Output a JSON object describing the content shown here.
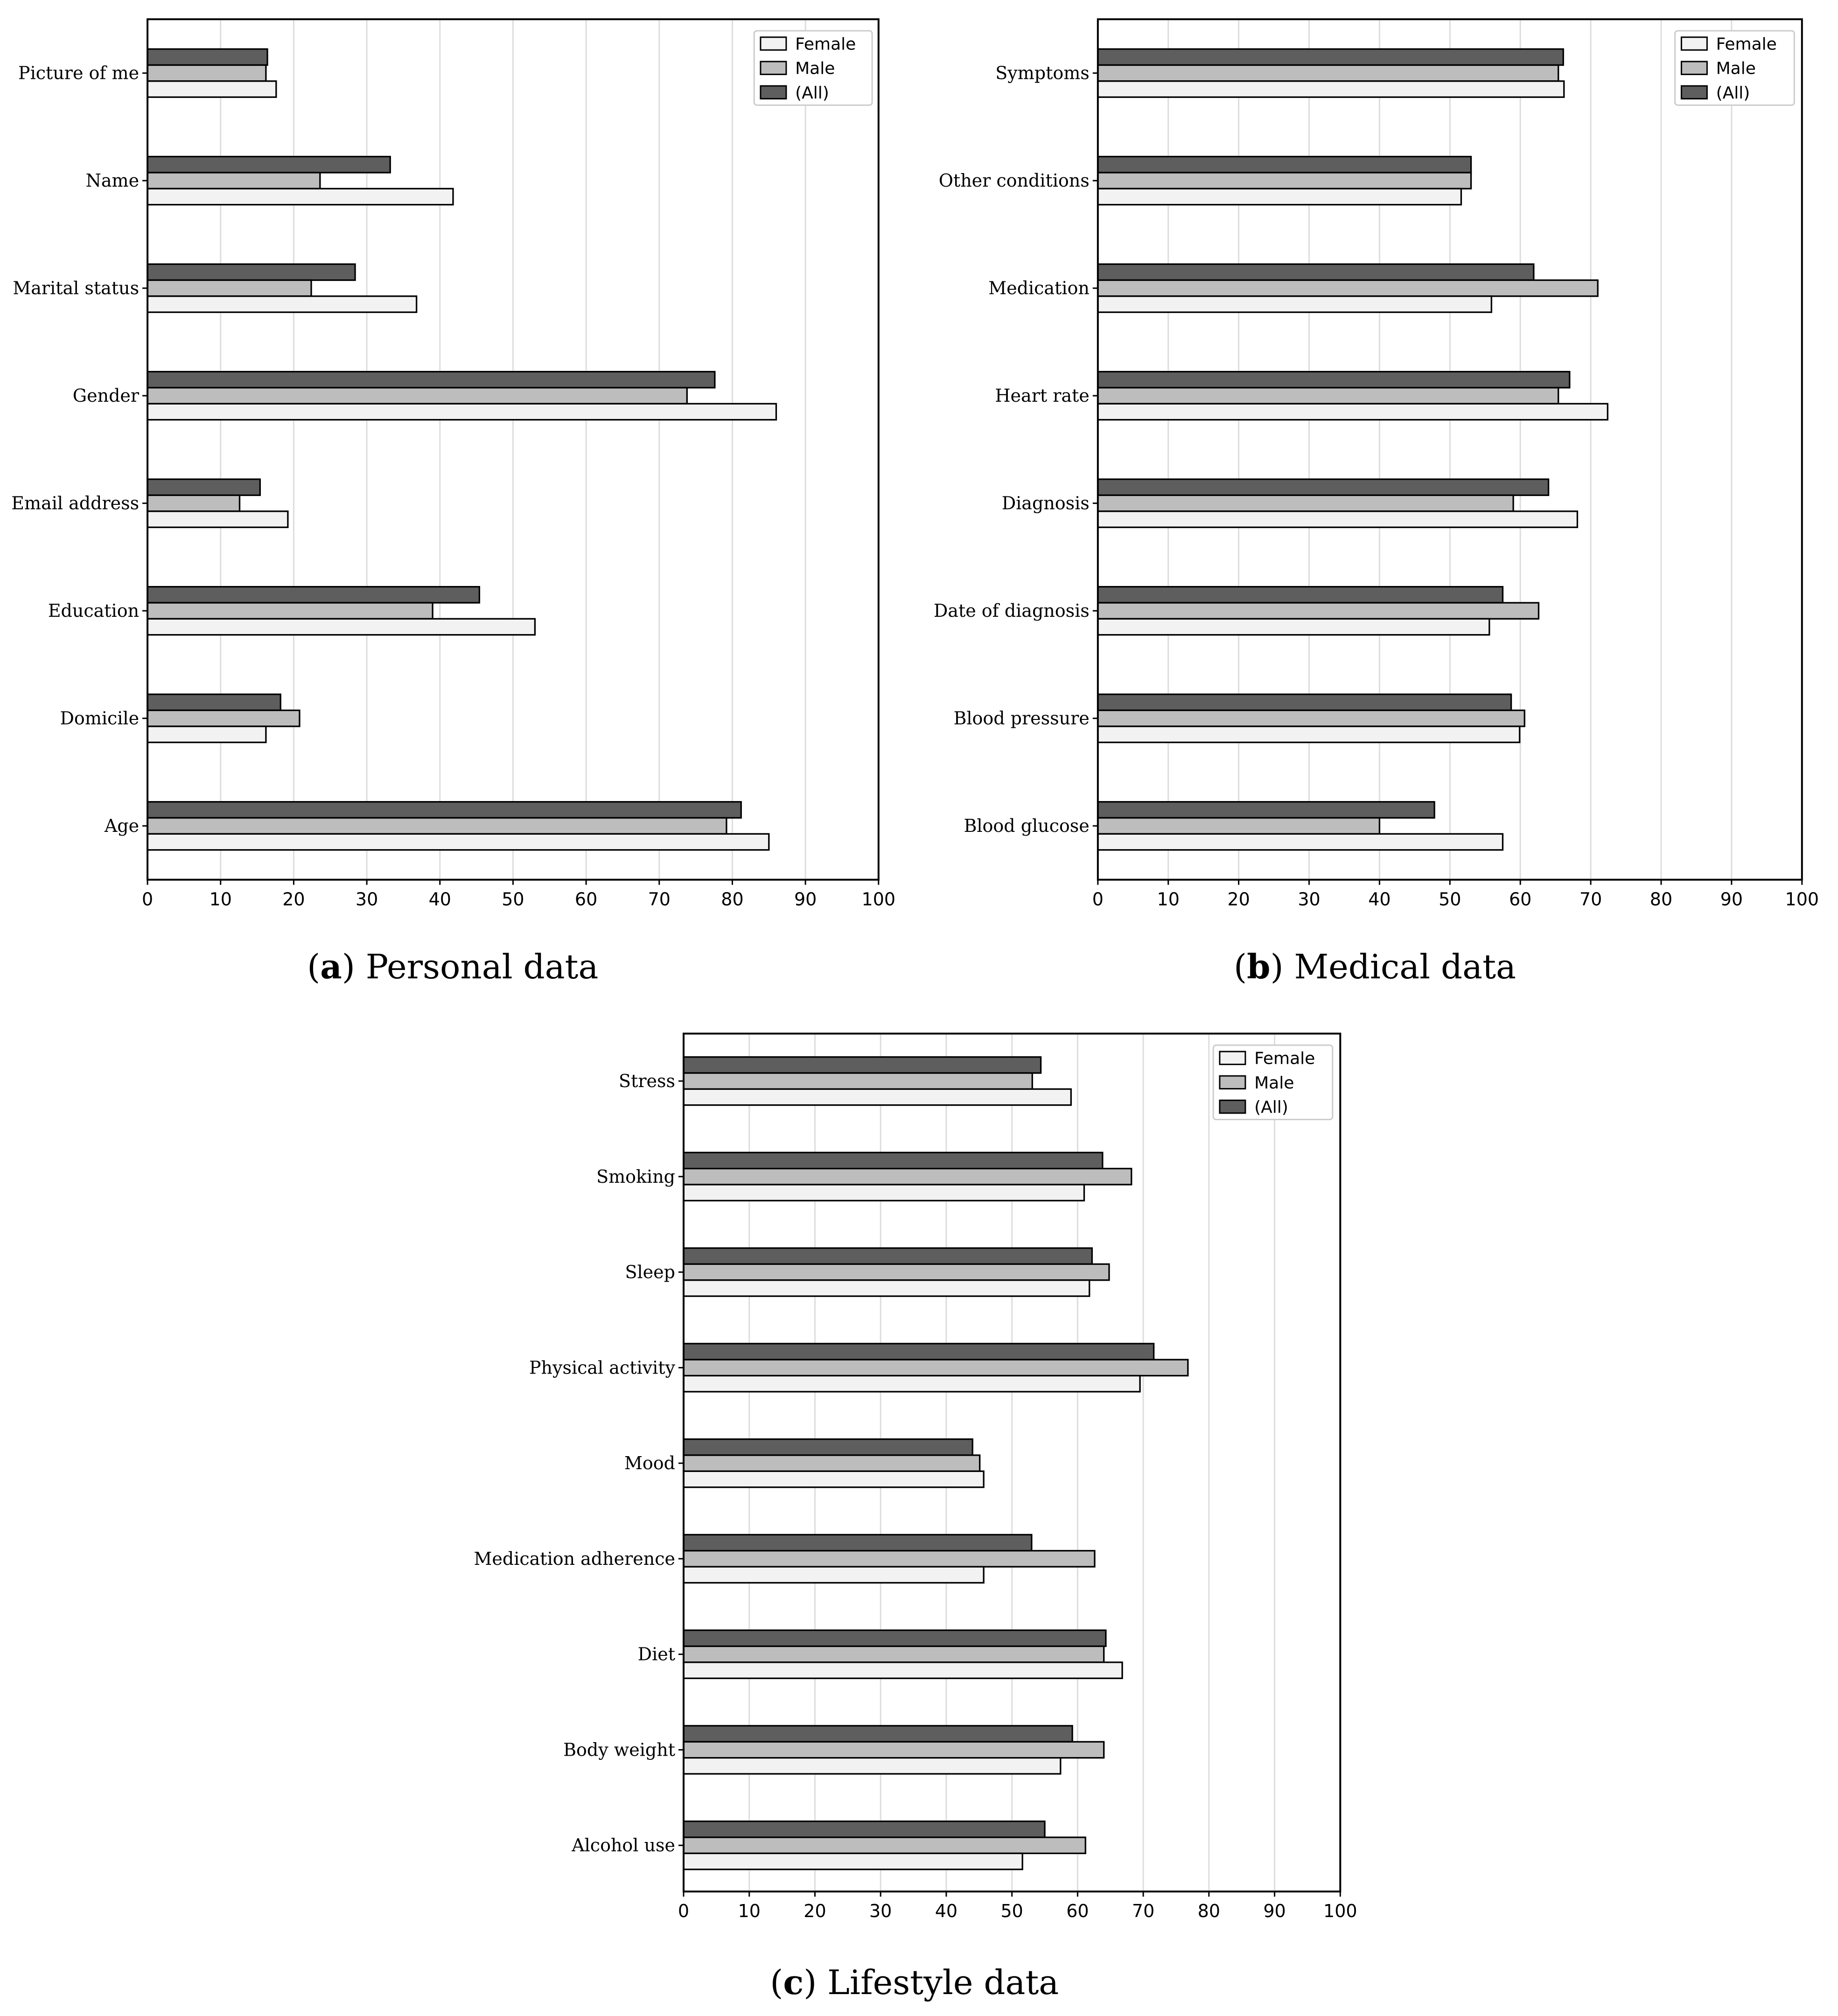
{
  "colors": {
    "Female": "#f2f2f2",
    "Male": "#bdbdbd",
    "(All)": "#5e5e5e",
    "grid": "#dddddd"
  },
  "chart_data": [
    {
      "type": "bar",
      "orientation": "horizontal",
      "caption_letter": "a",
      "caption_text": "Personal data",
      "categories": [
        "Picture of me",
        "Name",
        "Marital status",
        "Gender",
        "Email address",
        "Education",
        "Domicile",
        "Age"
      ],
      "series": [
        {
          "name": "Female",
          "values": [
            17.6,
            41.8,
            36.8,
            86.0,
            19.2,
            53.0,
            16.2,
            85.0
          ]
        },
        {
          "name": "Male",
          "values": [
            16.2,
            23.6,
            22.4,
            73.8,
            12.6,
            39.0,
            20.8,
            79.2
          ]
        },
        {
          "name": "(All)",
          "values": [
            16.4,
            33.2,
            28.4,
            77.6,
            15.4,
            45.4,
            18.2,
            81.2
          ]
        }
      ],
      "xlim": [
        0,
        100
      ],
      "xticks": [
        0,
        10,
        20,
        30,
        40,
        50,
        60,
        70,
        80,
        90,
        100
      ],
      "grid": "vertical",
      "legend": "top-right"
    },
    {
      "type": "bar",
      "orientation": "horizontal",
      "caption_letter": "b",
      "caption_text": "Medical data",
      "categories": [
        "Symptoms",
        "Other conditions",
        "Medication",
        "Heart rate",
        "Diagnosis",
        "Date of diagnosis",
        "Blood pressure",
        "Blood glucose"
      ],
      "series": [
        {
          "name": "Female",
          "values": [
            66.2,
            51.6,
            55.9,
            72.4,
            68.1,
            55.6,
            59.9,
            57.5
          ]
        },
        {
          "name": "Male",
          "values": [
            65.4,
            53.0,
            71.0,
            65.4,
            59.0,
            62.6,
            60.6,
            40.0
          ]
        },
        {
          "name": "(All)",
          "values": [
            66.1,
            53.0,
            61.9,
            67.0,
            64.0,
            57.5,
            58.7,
            47.8
          ]
        }
      ],
      "xlim": [
        0,
        100
      ],
      "xticks": [
        0,
        10,
        20,
        30,
        40,
        50,
        60,
        70,
        80,
        90,
        100
      ],
      "grid": "vertical",
      "legend": "top-right"
    },
    {
      "type": "bar",
      "orientation": "horizontal",
      "caption_letter": "c",
      "caption_text": "Lifestyle data",
      "categories": [
        "Stress",
        "Smoking",
        "Sleep",
        "Physical activity",
        "Mood",
        "Medication adherence",
        "Diet",
        "Body weight",
        "Alcohol use"
      ],
      "series": [
        {
          "name": "Female",
          "values": [
            59.0,
            61.0,
            61.8,
            69.5,
            45.7,
            45.7,
            66.8,
            57.4,
            51.6
          ]
        },
        {
          "name": "Male",
          "values": [
            53.1,
            68.2,
            64.8,
            76.8,
            45.1,
            62.6,
            64.0,
            64.0,
            61.2
          ]
        },
        {
          "name": "(All)",
          "values": [
            54.4,
            63.8,
            62.2,
            71.6,
            44.0,
            53.0,
            64.3,
            59.2,
            55.0
          ]
        }
      ],
      "xlim": [
        0,
        100
      ],
      "xticks": [
        0,
        10,
        20,
        30,
        40,
        50,
        60,
        70,
        80,
        90,
        100
      ],
      "grid": "vertical",
      "legend": "top-right"
    }
  ]
}
